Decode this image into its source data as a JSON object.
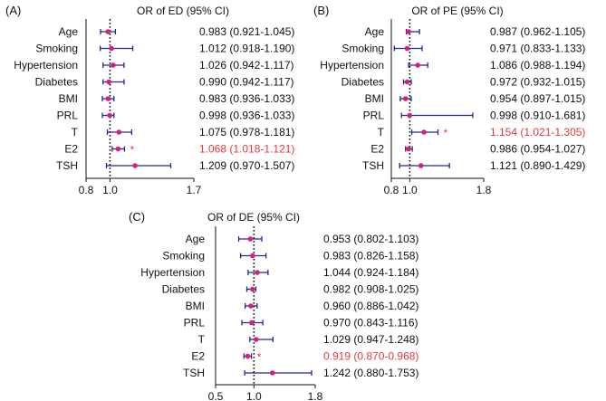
{
  "colors": {
    "ci": "#1f2a8c",
    "point": "#d6207a",
    "sig": "#e8383a",
    "text": "#111111",
    "refline": "#111111"
  },
  "chart_data": [
    {
      "type": "forest",
      "panel": "(A)",
      "title": "OR of ED (95% CI)",
      "xlim": [
        0.8,
        1.7
      ],
      "xticks": [
        0.8,
        1.0,
        1.7
      ],
      "xtick_labels": [
        "0.8",
        "1.0",
        "1.7"
      ],
      "ref": 1.0,
      "rows": [
        {
          "label": "Age",
          "or": 0.983,
          "lo": 0.921,
          "hi": 1.045,
          "text": "0.983 (0.921-1.045)",
          "sig": false
        },
        {
          "label": "Smoking",
          "or": 1.012,
          "lo": 0.918,
          "hi": 1.19,
          "text": "1.012 (0.918-1.190)",
          "sig": false
        },
        {
          "label": "Hypertension",
          "or": 1.026,
          "lo": 0.942,
          "hi": 1.117,
          "text": "1.026 (0.942-1.117)",
          "sig": false
        },
        {
          "label": "Diabetes",
          "or": 0.99,
          "lo": 0.942,
          "hi": 1.117,
          "text": "0.990 (0.942-1.117)",
          "sig": false
        },
        {
          "label": "BMI",
          "or": 0.983,
          "lo": 0.936,
          "hi": 1.033,
          "text": "0.983 (0.936-1.033)",
          "sig": false
        },
        {
          "label": "PRL",
          "or": 0.998,
          "lo": 0.936,
          "hi": 1.033,
          "text": "0.998 (0.936-1.033)",
          "sig": false
        },
        {
          "label": "T",
          "or": 1.075,
          "lo": 0.978,
          "hi": 1.181,
          "text": "1.075 (0.978-1.181)",
          "sig": false
        },
        {
          "label": "E2",
          "or": 1.068,
          "lo": 1.018,
          "hi": 1.121,
          "text": "1.068 (1.018-1.121)",
          "sig": true
        },
        {
          "label": "TSH",
          "or": 1.209,
          "lo": 0.97,
          "hi": 1.507,
          "text": "1.209 (0.970-1.507)",
          "sig": false
        }
      ]
    },
    {
      "type": "forest",
      "panel": "(B)",
      "title": "OR of PE (95% CI)",
      "xlim": [
        0.8,
        1.8
      ],
      "xticks": [
        0.8,
        1.0,
        1.8
      ],
      "xtick_labels": [
        "0.8",
        "1.0",
        "1.8"
      ],
      "ref": 1.0,
      "rows": [
        {
          "label": "Age",
          "or": 0.987,
          "lo": 0.962,
          "hi": 1.105,
          "text": "0.987 (0.962-1.105)",
          "sig": false
        },
        {
          "label": "Smoking",
          "or": 0.971,
          "lo": 0.833,
          "hi": 1.133,
          "text": "0.971 (0.833-1.133)",
          "sig": false
        },
        {
          "label": "Hypertension",
          "or": 1.086,
          "lo": 0.988,
          "hi": 1.194,
          "text": "1.086 (0.988-1.194)",
          "sig": false
        },
        {
          "label": "Diabetes",
          "or": 0.972,
          "lo": 0.932,
          "hi": 1.015,
          "text": "0.972 (0.932-1.015)",
          "sig": false
        },
        {
          "label": "BMI",
          "or": 0.954,
          "lo": 0.897,
          "hi": 1.015,
          "text": "0.954 (0.897-1.015)",
          "sig": false
        },
        {
          "label": "PRL",
          "or": 0.998,
          "lo": 0.91,
          "hi": 1.681,
          "text": "0.998 (0.910-1.681)",
          "sig": false
        },
        {
          "label": "T",
          "or": 1.154,
          "lo": 1.021,
          "hi": 1.305,
          "text": "1.154 (1.021-1.305)",
          "sig": true
        },
        {
          "label": "E2",
          "or": 0.986,
          "lo": 0.954,
          "hi": 1.027,
          "text": "0.986 (0.954-1.027)",
          "sig": false
        },
        {
          "label": "TSH",
          "or": 1.121,
          "lo": 0.89,
          "hi": 1.429,
          "text": "1.121 (0.890-1.429)",
          "sig": false
        }
      ]
    },
    {
      "type": "forest",
      "panel": "(C)",
      "title": "OR of DE (95% CI)",
      "xlim": [
        0.5,
        1.8
      ],
      "xticks": [
        0.5,
        1.0,
        1.8
      ],
      "xtick_labels": [
        "0.5",
        "1.0",
        "1.8"
      ],
      "ref": 1.0,
      "rows": [
        {
          "label": "Age",
          "or": 0.953,
          "lo": 0.802,
          "hi": 1.103,
          "text": "0.953 (0.802-1.103)",
          "sig": false
        },
        {
          "label": "Smoking",
          "or": 0.983,
          "lo": 0.826,
          "hi": 1.158,
          "text": "0.983 (0.826-1.158)",
          "sig": false
        },
        {
          "label": "Hypertension",
          "or": 1.044,
          "lo": 0.924,
          "hi": 1.184,
          "text": "1.044 (0.924-1.184)",
          "sig": false
        },
        {
          "label": "Diabetes",
          "or": 0.982,
          "lo": 0.908,
          "hi": 1.025,
          "text": "0.982 (0.908-1.025)",
          "sig": false
        },
        {
          "label": "BMI",
          "or": 0.96,
          "lo": 0.886,
          "hi": 1.042,
          "text": "0.960 (0.886-1.042)",
          "sig": false
        },
        {
          "label": "PRL",
          "or": 0.97,
          "lo": 0.843,
          "hi": 1.116,
          "text": "0.970 (0.843-1.116)",
          "sig": false
        },
        {
          "label": "T",
          "or": 1.029,
          "lo": 0.947,
          "hi": 1.248,
          "text": "1.029 (0.947-1.248)",
          "sig": false
        },
        {
          "label": "E2",
          "or": 0.919,
          "lo": 0.87,
          "hi": 0.968,
          "text": "0.919 (0.870-0.968)",
          "sig": true
        },
        {
          "label": "TSH",
          "or": 1.242,
          "lo": 0.88,
          "hi": 1.753,
          "text": "1.242 (0.880-1.753)",
          "sig": false
        }
      ]
    }
  ],
  "sig_marker": "*"
}
